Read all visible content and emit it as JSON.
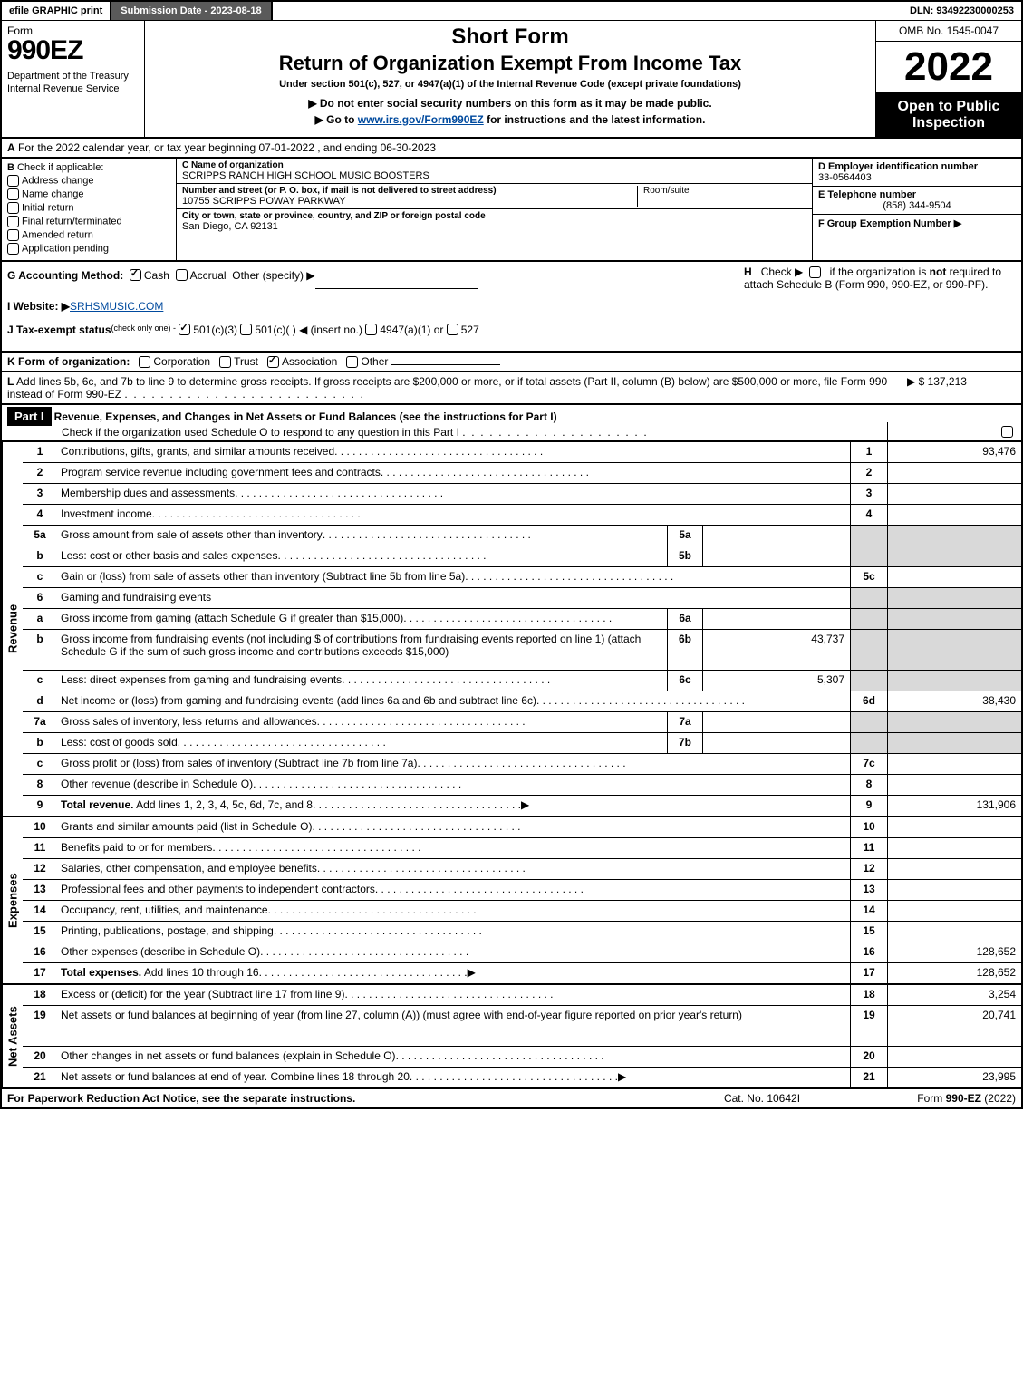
{
  "topbar": {
    "efile": "efile GRAPHIC print",
    "submission": "Submission Date - 2023-08-18",
    "dln": "DLN: 93492230000253"
  },
  "header": {
    "form_word": "Form",
    "form_num": "990EZ",
    "dept": "Department of the Treasury\nInternal Revenue Service",
    "short_form": "Short Form",
    "return_of": "Return of Organization Exempt From Income Tax",
    "under_section": "Under section 501(c), 527, or 4947(a)(1) of the Internal Revenue Code (except private foundations)",
    "instr1": "▶ Do not enter social security numbers on this form as it may be made public.",
    "instr2_pre": "▶ Go to ",
    "instr2_link": "www.irs.gov/Form990EZ",
    "instr2_post": " for instructions and the latest information.",
    "omb": "OMB No. 1545-0047",
    "year": "2022",
    "open": "Open to Public Inspection"
  },
  "rowA": {
    "label": "A",
    "text": "  For the 2022 calendar year, or tax year beginning 07-01-2022 , and ending 06-30-2023"
  },
  "colB": {
    "label": "B",
    "check_if": "Check if applicable:",
    "items": [
      "Address change",
      "Name change",
      "Initial return",
      "Final return/terminated",
      "Amended return",
      "Application pending"
    ]
  },
  "colC": {
    "name_lbl": "C Name of organization",
    "name_val": "SCRIPPS RANCH HIGH SCHOOL MUSIC BOOSTERS",
    "addr_lbl": "Number and street (or P. O. box, if mail is not delivered to street address)",
    "addr_val": "10755 SCRIPPS POWAY PARKWAY",
    "room_lbl": "Room/suite",
    "city_lbl": "City or town, state or province, country, and ZIP or foreign postal code",
    "city_val": "San Diego, CA  92131"
  },
  "colDEF": {
    "d_lbl": "D Employer identification number",
    "d_val": "33-0564403",
    "e_lbl": "E Telephone number",
    "e_val": "(858) 344-9504",
    "f_lbl": "F Group Exemption Number  ▶"
  },
  "rowG": {
    "g_label": "G Accounting Method:",
    "g_cash": "Cash",
    "g_accrual": "Accrual",
    "g_other": "Other (specify) ▶",
    "i_label": "I Website: ▶",
    "i_val": "SRHSMUSIC.COM",
    "j_label": "J Tax-exempt status",
    "j_sub": "(check only one) -",
    "j_501c3": "501(c)(3)",
    "j_501c": "501(c)(   ) ◀ (insert no.)",
    "j_4947": "4947(a)(1) or",
    "j_527": "527",
    "h_label": "H",
    "h_text": "Check ▶    if the organization is not required to attach Schedule B (Form 990, 990-EZ, or 990-PF)."
  },
  "rowK": {
    "k_label": "K Form of organization:",
    "k_corp": "Corporation",
    "k_trust": "Trust",
    "k_assoc": "Association",
    "k_other": "Other"
  },
  "rowL": {
    "l_label": "L",
    "l_text": "Add lines 5b, 6c, and 7b to line 9 to determine gross receipts. If gross receipts are $200,000 or more, or if total assets (Part II, column (B) below) are $500,000 or more, file Form 990 instead of Form 990-EZ",
    "l_amount": "▶ $ 137,213"
  },
  "partI": {
    "label": "Part I",
    "title": "Revenue, Expenses, and Changes in Net Assets or Fund Balances (see the instructions for Part I)",
    "check_line": "Check if the organization used Schedule O to respond to any question in this Part I",
    "check_checked": false
  },
  "sideLabels": {
    "revenue": "Revenue",
    "expenses": "Expenses",
    "netassets": "Net Assets"
  },
  "revenue_lines": [
    {
      "num": "1",
      "desc": "Contributions, gifts, grants, and similar amounts received",
      "boxnum": "1",
      "amt": "93,476"
    },
    {
      "num": "2",
      "desc": "Program service revenue including government fees and contracts",
      "boxnum": "2",
      "amt": ""
    },
    {
      "num": "3",
      "desc": "Membership dues and assessments",
      "boxnum": "3",
      "amt": ""
    },
    {
      "num": "4",
      "desc": "Investment income",
      "boxnum": "4",
      "amt": ""
    },
    {
      "num": "5a",
      "desc": "Gross amount from sale of assets other than inventory",
      "sublbl": "5a",
      "subval": "",
      "grey": true
    },
    {
      "num": "b",
      "desc": "Less: cost or other basis and sales expenses",
      "sublbl": "5b",
      "subval": "",
      "grey": true
    },
    {
      "num": "c",
      "desc": "Gain or (loss) from sale of assets other than inventory (Subtract line 5b from line 5a)",
      "boxnum": "5c",
      "amt": ""
    },
    {
      "num": "6",
      "desc": "Gaming and fundraising events",
      "grey": true,
      "noright": true
    },
    {
      "num": "a",
      "desc": "Gross income from gaming (attach Schedule G if greater than $15,000)",
      "sublbl": "6a",
      "subval": "",
      "grey": true
    },
    {
      "num": "b",
      "desc": "Gross income from fundraising events (not including $                         of contributions from fundraising events reported on line 1) (attach Schedule G if the sum of such gross income and contributions exceeds $15,000)",
      "sublbl": "6b",
      "subval": "43,737",
      "grey": true,
      "tall": true
    },
    {
      "num": "c",
      "desc": "Less: direct expenses from gaming and fundraising events",
      "sublbl": "6c",
      "subval": "5,307",
      "grey": true
    },
    {
      "num": "d",
      "desc": "Net income or (loss) from gaming and fundraising events (add lines 6a and 6b and subtract line 6c)",
      "boxnum": "6d",
      "amt": "38,430"
    },
    {
      "num": "7a",
      "desc": "Gross sales of inventory, less returns and allowances",
      "sublbl": "7a",
      "subval": "",
      "grey": true
    },
    {
      "num": "b",
      "desc": "Less: cost of goods sold",
      "sublbl": "7b",
      "subval": "",
      "grey": true
    },
    {
      "num": "c",
      "desc": "Gross profit or (loss) from sales of inventory (Subtract line 7b from line 7a)",
      "boxnum": "7c",
      "amt": ""
    },
    {
      "num": "8",
      "desc": "Other revenue (describe in Schedule O)",
      "boxnum": "8",
      "amt": ""
    },
    {
      "num": "9",
      "desc": "Total revenue. Add lines 1, 2, 3, 4, 5c, 6d, 7c, and 8",
      "boxnum": "9",
      "amt": "131,906",
      "bold": true,
      "arrow": true
    }
  ],
  "expense_lines": [
    {
      "num": "10",
      "desc": "Grants and similar amounts paid (list in Schedule O)",
      "boxnum": "10",
      "amt": ""
    },
    {
      "num": "11",
      "desc": "Benefits paid to or for members",
      "boxnum": "11",
      "amt": ""
    },
    {
      "num": "12",
      "desc": "Salaries, other compensation, and employee benefits",
      "boxnum": "12",
      "amt": ""
    },
    {
      "num": "13",
      "desc": "Professional fees and other payments to independent contractors",
      "boxnum": "13",
      "amt": ""
    },
    {
      "num": "14",
      "desc": "Occupancy, rent, utilities, and maintenance",
      "boxnum": "14",
      "amt": ""
    },
    {
      "num": "15",
      "desc": "Printing, publications, postage, and shipping",
      "boxnum": "15",
      "amt": ""
    },
    {
      "num": "16",
      "desc": "Other expenses (describe in Schedule O)",
      "boxnum": "16",
      "amt": "128,652"
    },
    {
      "num": "17",
      "desc": "Total expenses. Add lines 10 through 16",
      "boxnum": "17",
      "amt": "128,652",
      "bold": true,
      "arrow": true
    }
  ],
  "netasset_lines": [
    {
      "num": "18",
      "desc": "Excess or (deficit) for the year (Subtract line 17 from line 9)",
      "boxnum": "18",
      "amt": "3,254"
    },
    {
      "num": "19",
      "desc": "Net assets or fund balances at beginning of year (from line 27, column (A)) (must agree with end-of-year figure reported on prior year's return)",
      "boxnum": "19",
      "amt": "20,741",
      "tall": true
    },
    {
      "num": "20",
      "desc": "Other changes in net assets or fund balances (explain in Schedule O)",
      "boxnum": "20",
      "amt": ""
    },
    {
      "num": "21",
      "desc": "Net assets or fund balances at end of year. Combine lines 18 through 20",
      "boxnum": "21",
      "amt": "23,995",
      "arrow": true
    }
  ],
  "footer": {
    "left": "For Paperwork Reduction Act Notice, see the separate instructions.",
    "mid": "Cat. No. 10642I",
    "right_ping": "Form ",
    "right_bold": "990-EZ",
    "right_year": " (2022)"
  },
  "colors": {
    "black": "#000000",
    "white": "#ffffff",
    "grey_btn": "#5a5a5a",
    "grey_cell": "#d9d9d9",
    "link": "#004a9e"
  }
}
